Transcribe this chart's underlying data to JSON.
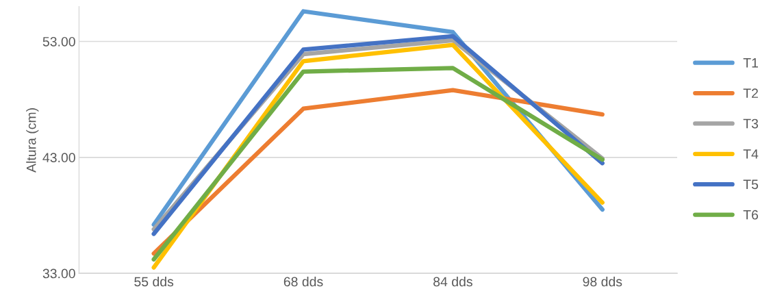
{
  "chart_data": {
    "type": "line",
    "ylabel": "Altura (cm)",
    "categories": [
      "55 dds",
      "68 dds",
      "84 dds",
      "98 dds"
    ],
    "series": [
      {
        "name": "T1",
        "color": "#5b9bd5",
        "values": [
          37.2,
          55.6,
          53.8,
          38.5
        ]
      },
      {
        "name": "T2",
        "color": "#ed7d31",
        "values": [
          34.7,
          47.2,
          48.8,
          46.7
        ]
      },
      {
        "name": "T3",
        "color": "#a5a5a5",
        "values": [
          36.8,
          51.9,
          53.1,
          42.9
        ]
      },
      {
        "name": "T4",
        "color": "#ffc000",
        "values": [
          33.5,
          51.3,
          52.7,
          39.1
        ]
      },
      {
        "name": "T5",
        "color": "#4472c4",
        "values": [
          36.4,
          52.3,
          53.45,
          42.5
        ]
      },
      {
        "name": "T6",
        "color": "#70ad47",
        "values": [
          34.2,
          50.4,
          50.7,
          42.8
        ]
      }
    ],
    "ylim": [
      33,
      56
    ],
    "yticks": [
      {
        "value": 33,
        "label": "33.00"
      },
      {
        "value": 43,
        "label": "43.00"
      },
      {
        "value": 53,
        "label": "53.00"
      }
    ],
    "grid": "y",
    "legend": "right",
    "marker": "none",
    "line_style": "solid"
  }
}
